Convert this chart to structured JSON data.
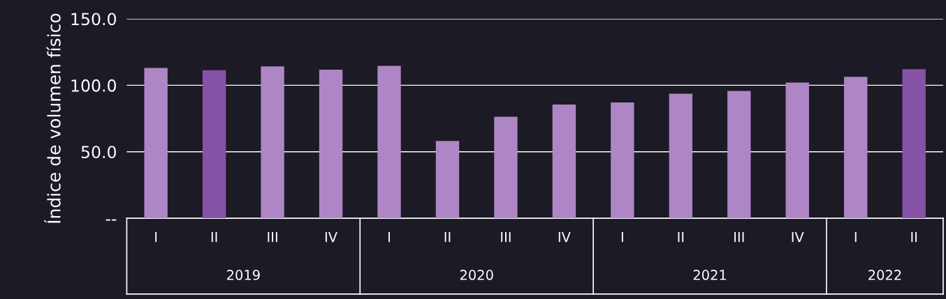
{
  "chart_data": {
    "type": "bar",
    "ylabel": "Índice de volumen físico",
    "categories": [
      "I",
      "II",
      "III",
      "IV",
      "I",
      "II",
      "III",
      "IV",
      "I",
      "II",
      "III",
      "IV",
      "I",
      "II"
    ],
    "values": [
      113.0,
      111.4,
      114.2,
      111.8,
      114.6,
      58.2,
      76.3,
      85.5,
      87.1,
      93.7,
      95.7,
      102.0,
      106.4,
      112.1
    ],
    "colors": [
      "#ae86c6",
      "#8652a8",
      "#ae86c6",
      "#ae86c6",
      "#ae86c6",
      "#ae86c6",
      "#ae86c6",
      "#ae86c6",
      "#ae86c6",
      "#ae86c6",
      "#ae86c6",
      "#ae86c6",
      "#ae86c6",
      "#8652a8"
    ],
    "annotations": [
      "2019",
      "2020",
      "2021",
      "2022"
    ],
    "ylim": [
      0,
      150
    ],
    "yticks": [
      {
        "value": 0,
        "label": "--"
      },
      {
        "value": 50,
        "label": "50.0"
      },
      {
        "value": 100,
        "label": "100.0"
      },
      {
        "value": 150,
        "label": "150.0"
      }
    ],
    "grid": "y"
  }
}
